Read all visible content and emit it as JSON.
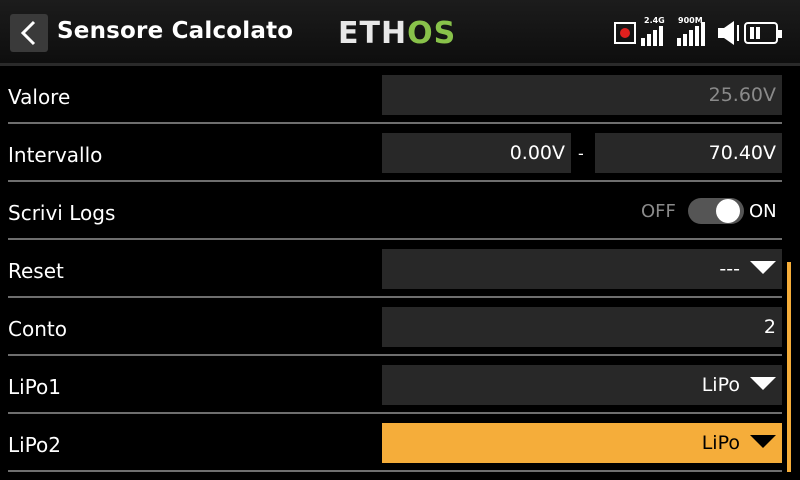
{
  "header": {
    "title": "Sensore Calcolato",
    "logo_a": "ETH",
    "logo_b": "OS",
    "signal_1_label": "2.4G",
    "signal_2_label": "900M",
    "icons": [
      "back-icon",
      "record-icon",
      "signal-2-4g-icon",
      "signal-900m-icon",
      "speaker-icon",
      "battery-icon"
    ]
  },
  "rows": {
    "valore": {
      "label": "Valore",
      "value": "25.60V"
    },
    "intervallo": {
      "label": "Intervallo",
      "min": "0.00V",
      "separator": "-",
      "max": "70.40V"
    },
    "scrivi_logs": {
      "label": "Scrivi Logs",
      "off": "OFF",
      "on": "ON",
      "state": "ON"
    },
    "reset": {
      "label": "Reset",
      "value": "---"
    },
    "conto": {
      "label": "Conto",
      "value": "2"
    },
    "lipo1": {
      "label": "LiPo1",
      "value": "LiPo"
    },
    "lipo2": {
      "label": "LiPo2",
      "value": "LiPo"
    }
  },
  "colors": {
    "accent": "#f5ad3a",
    "logo_green": "#88c24a",
    "field_bg": "#282828",
    "record_red": "#e0201e"
  }
}
